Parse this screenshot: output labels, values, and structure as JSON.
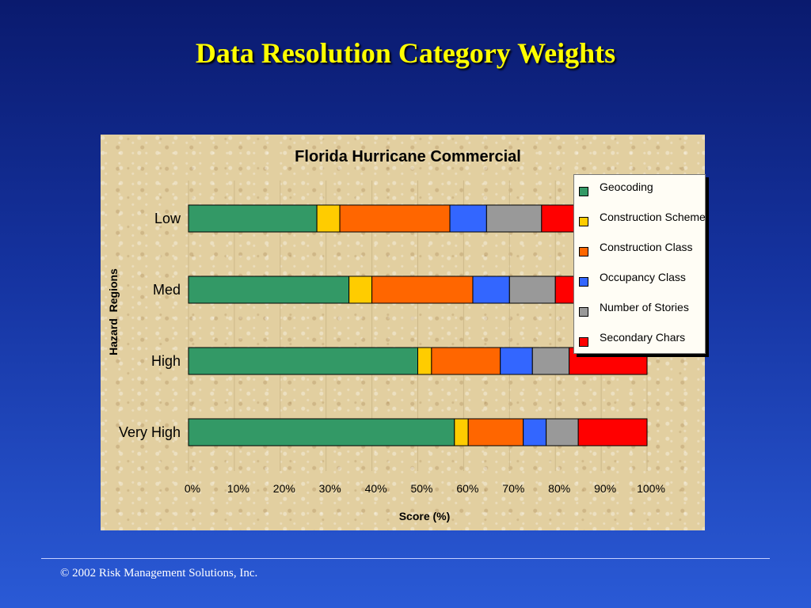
{
  "slide": {
    "title": "Data Resolution Category Weights",
    "footer": "© 2002 Risk Management Solutions, Inc."
  },
  "chart_data": {
    "type": "bar",
    "orientation": "horizontal",
    "stacked": true,
    "title": "Florida Hurricane Commercial",
    "xlabel": "Score (%)",
    "ylabel": "Hazard  Regions",
    "xlim": [
      0,
      100
    ],
    "x_ticks": [
      "0%",
      "10%",
      "20%",
      "30%",
      "40%",
      "50%",
      "60%",
      "70%",
      "80%",
      "90%",
      "100%"
    ],
    "categories": [
      "Low",
      "Med",
      "High",
      "Very High"
    ],
    "grid": true,
    "legend_position": "right",
    "series": [
      {
        "name": "Geocoding",
        "color": "#339966",
        "values": [
          28,
          35,
          50,
          58
        ]
      },
      {
        "name": "Construction Scheme",
        "color": "#ffcc00",
        "values": [
          5,
          5,
          3,
          3
        ]
      },
      {
        "name": "Construction Class",
        "color": "#ff6600",
        "values": [
          24,
          22,
          15,
          12
        ]
      },
      {
        "name": "Occupancy Class",
        "color": "#3366ff",
        "values": [
          8,
          8,
          7,
          5
        ]
      },
      {
        "name": "Number of Stories",
        "color": "#999999",
        "values": [
          12,
          10,
          8,
          7
        ]
      },
      {
        "name": "Secondary Chars",
        "color": "#ff0000",
        "values": [
          23,
          20,
          17,
          15
        ]
      }
    ]
  }
}
